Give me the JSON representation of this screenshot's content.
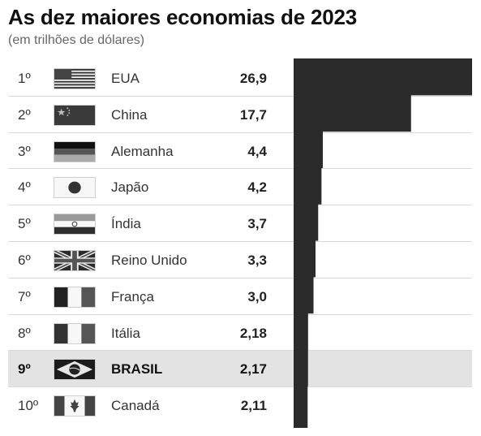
{
  "title": "As dez maiores economias de 2023",
  "subtitle": "(em trilhões de dólares)",
  "chart_data": {
    "type": "bar",
    "title": "As dez maiores economias de 2023",
    "subtitle": "(em trilhões de dólares)",
    "xlabel": "",
    "ylabel": "",
    "xlim": [
      0,
      26.9
    ],
    "categories": [
      "EUA",
      "China",
      "Alemanha",
      "Japão",
      "Índia",
      "Reino Unido",
      "França",
      "Itália",
      "BRASIL",
      "Canadá"
    ],
    "values": [
      26.9,
      17.7,
      4.4,
      4.2,
      3.7,
      3.3,
      3.0,
      2.18,
      2.17,
      2.11
    ],
    "highlight": "BRASIL",
    "bar_color": "#2b2b2b",
    "highlight_row_color": "#e3e3e3"
  },
  "rows": [
    {
      "rank": "1º",
      "country": "EUA",
      "value": "26,9",
      "flag": "usa-flag-icon"
    },
    {
      "rank": "2º",
      "country": "China",
      "value": "17,7",
      "flag": "china-flag-icon"
    },
    {
      "rank": "3º",
      "country": "Alemanha",
      "value": "4,4",
      "flag": "germany-flag-icon"
    },
    {
      "rank": "4º",
      "country": "Japão",
      "value": "4,2",
      "flag": "japan-flag-icon"
    },
    {
      "rank": "5º",
      "country": "Índia",
      "value": "3,7",
      "flag": "india-flag-icon"
    },
    {
      "rank": "6º",
      "country": "Reino Unido",
      "value": "3,3",
      "flag": "uk-flag-icon"
    },
    {
      "rank": "7º",
      "country": "França",
      "value": "3,0",
      "flag": "france-flag-icon"
    },
    {
      "rank": "8º",
      "country": "Itália",
      "value": "2,18",
      "flag": "italy-flag-icon"
    },
    {
      "rank": "9º",
      "country": "BRASIL",
      "value": "2,17",
      "flag": "brazil-flag-icon"
    },
    {
      "rank": "10º",
      "country": "Canadá",
      "value": "2,11",
      "flag": "canada-flag-icon"
    }
  ]
}
